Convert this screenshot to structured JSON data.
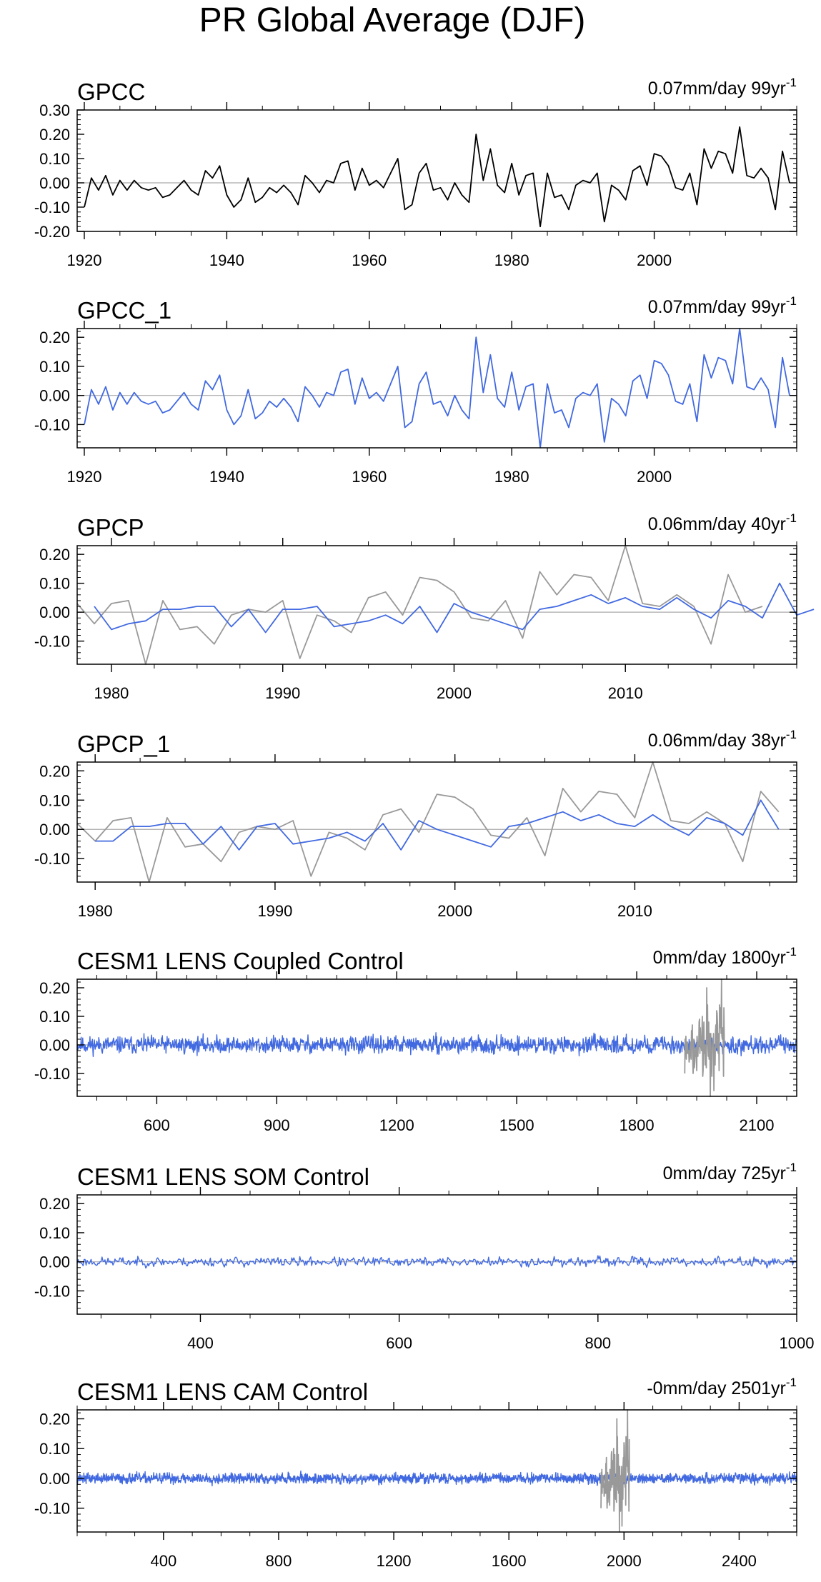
{
  "figure_title": "PR Global Average (DJF)",
  "colors": {
    "blue": "#4169e1",
    "gray": "#999999",
    "black": "#000000",
    "zero_line": "#aaaaaa"
  },
  "chart_data": [
    {
      "type": "line",
      "title": "GPCC",
      "trend_label": "0.07mm/day 99yr",
      "trend_exp": "-1",
      "xlim": [
        1919,
        2020
      ],
      "ylim": [
        -0.2,
        0.3
      ],
      "xticks": [
        1920,
        1940,
        1960,
        1980,
        2000
      ],
      "yticks": [
        "-0.20",
        "-0.10",
        "0.00",
        "0.10",
        "0.20",
        "0.30"
      ],
      "ytick_values": [
        -0.2,
        -0.1,
        0.0,
        0.1,
        0.2,
        0.3
      ],
      "series": [
        {
          "name": "GPCC",
          "color": "black",
          "x_start": 1920,
          "x_step": 1,
          "values": [
            -0.1,
            0.02,
            -0.03,
            0.03,
            -0.05,
            0.01,
            -0.03,
            0.01,
            -0.02,
            -0.03,
            -0.02,
            -0.06,
            -0.05,
            -0.02,
            0.01,
            -0.03,
            -0.05,
            0.05,
            0.02,
            0.07,
            -0.05,
            -0.1,
            -0.07,
            0.02,
            -0.08,
            -0.06,
            -0.02,
            -0.04,
            -0.01,
            -0.04,
            -0.09,
            0.03,
            0.0,
            -0.04,
            0.01,
            0.0,
            0.08,
            0.09,
            -0.03,
            0.06,
            -0.01,
            0.01,
            -0.02,
            0.04,
            0.1,
            -0.11,
            -0.09,
            0.04,
            0.08,
            -0.03,
            -0.02,
            -0.07,
            0.0,
            -0.05,
            -0.08,
            0.2,
            0.01,
            0.14,
            -0.01,
            -0.04,
            0.08,
            -0.05,
            0.03,
            0.04,
            -0.18,
            0.04,
            -0.06,
            -0.05,
            -0.11,
            -0.01,
            0.01,
            0.0,
            0.04,
            -0.16,
            -0.01,
            -0.03,
            -0.07,
            0.05,
            0.07,
            -0.01,
            0.12,
            0.11,
            0.07,
            -0.02,
            -0.03,
            0.04,
            -0.09,
            0.14,
            0.06,
            0.13,
            0.12,
            0.04,
            0.23,
            0.03,
            0.02,
            0.06,
            0.02,
            -0.11,
            0.13,
            0.0
          ]
        }
      ]
    },
    {
      "type": "line",
      "title": "GPCC_1",
      "trend_label": "0.07mm/day 99yr",
      "trend_exp": "-1",
      "xlim": [
        1919,
        2020
      ],
      "ylim": [
        -0.18,
        0.23
      ],
      "xticks": [
        1920,
        1940,
        1960,
        1980,
        2000
      ],
      "yticks": [
        "-0.10",
        "0.00",
        "0.10",
        "0.20"
      ],
      "ytick_values": [
        -0.1,
        0.0,
        0.1,
        0.2
      ],
      "series": [
        {
          "name": "GPCC_1",
          "color": "blue",
          "x_start": 1920,
          "x_step": 1,
          "values": [
            -0.1,
            0.02,
            -0.03,
            0.03,
            -0.05,
            0.01,
            -0.03,
            0.01,
            -0.02,
            -0.03,
            -0.02,
            -0.06,
            -0.05,
            -0.02,
            0.01,
            -0.03,
            -0.05,
            0.05,
            0.02,
            0.07,
            -0.05,
            -0.1,
            -0.07,
            0.02,
            -0.08,
            -0.06,
            -0.02,
            -0.04,
            -0.01,
            -0.04,
            -0.09,
            0.03,
            0.0,
            -0.04,
            0.01,
            0.0,
            0.08,
            0.09,
            -0.03,
            0.06,
            -0.01,
            0.01,
            -0.02,
            0.04,
            0.1,
            -0.11,
            -0.09,
            0.04,
            0.08,
            -0.03,
            -0.02,
            -0.07,
            0.0,
            -0.05,
            -0.08,
            0.2,
            0.01,
            0.14,
            -0.01,
            -0.04,
            0.08,
            -0.05,
            0.03,
            0.04,
            -0.18,
            0.04,
            -0.06,
            -0.05,
            -0.11,
            -0.01,
            0.01,
            0.0,
            0.04,
            -0.16,
            -0.01,
            -0.03,
            -0.07,
            0.05,
            0.07,
            -0.01,
            0.12,
            0.11,
            0.07,
            -0.02,
            -0.03,
            0.04,
            -0.09,
            0.14,
            0.06,
            0.13,
            0.12,
            0.04,
            0.23,
            0.03,
            0.02,
            0.06,
            0.02,
            -0.11,
            0.13,
            0.0
          ]
        }
      ]
    },
    {
      "type": "line",
      "title": "GPCP",
      "trend_label": "0.06mm/day 40yr",
      "trend_exp": "-1",
      "xlim": [
        1978,
        2020
      ],
      "ylim": [
        -0.18,
        0.23
      ],
      "xticks": [
        1980,
        1990,
        2000,
        2010
      ],
      "yticks": [
        "-0.10",
        "0.00",
        "0.10",
        "0.20"
      ],
      "ytick_values": [
        -0.1,
        0.0,
        0.1,
        0.2
      ],
      "series": [
        {
          "name": "GPCC (gray)",
          "color": "gray",
          "x_start": 1978,
          "x_step": 1,
          "values": [
            0.03,
            -0.04,
            0.03,
            0.04,
            -0.18,
            0.04,
            -0.06,
            -0.05,
            -0.11,
            -0.01,
            0.01,
            0.0,
            0.04,
            -0.16,
            -0.01,
            -0.03,
            -0.07,
            0.05,
            0.07,
            -0.01,
            0.12,
            0.11,
            0.07,
            -0.02,
            -0.03,
            0.04,
            -0.09,
            0.14,
            0.06,
            0.13,
            0.12,
            0.04,
            0.23,
            0.03,
            0.02,
            0.06,
            0.02,
            -0.11,
            0.13,
            0.0,
            0.02
          ]
        },
        {
          "name": "GPCP (blue)",
          "color": "blue",
          "x_start": 1979,
          "x_step": 1,
          "values": [
            0.02,
            -0.06,
            -0.04,
            -0.03,
            0.01,
            0.01,
            0.02,
            0.02,
            -0.05,
            0.01,
            -0.07,
            0.01,
            0.01,
            0.02,
            -0.05,
            -0.04,
            -0.03,
            -0.01,
            -0.04,
            0.02,
            -0.07,
            0.03,
            0.0,
            -0.02,
            -0.04,
            -0.06,
            0.01,
            0.02,
            0.04,
            0.06,
            0.03,
            0.05,
            0.02,
            0.01,
            0.05,
            0.01,
            -0.02,
            0.04,
            0.02,
            -0.02,
            0.1,
            -0.01,
            0.01
          ]
        }
      ]
    },
    {
      "type": "line",
      "title": "GPCP_1",
      "trend_label": "0.06mm/day 38yr",
      "trend_exp": "-1",
      "xlim": [
        1979,
        2019
      ],
      "ylim": [
        -0.18,
        0.23
      ],
      "xticks": [
        1980,
        1990,
        2000,
        2010
      ],
      "yticks": [
        "-0.10",
        "0.00",
        "0.10",
        "0.20"
      ],
      "ytick_values": [
        -0.1,
        0.0,
        0.1,
        0.2
      ],
      "series": [
        {
          "name": "GPCC (gray)",
          "color": "gray",
          "x_start": 1979,
          "x_step": 1,
          "values": [
            0.02,
            -0.04,
            0.03,
            0.04,
            -0.18,
            0.04,
            -0.06,
            -0.05,
            -0.11,
            -0.01,
            0.01,
            0.0,
            0.03,
            -0.16,
            -0.01,
            -0.03,
            -0.07,
            0.05,
            0.07,
            -0.01,
            0.12,
            0.11,
            0.07,
            -0.02,
            -0.03,
            0.04,
            -0.09,
            0.14,
            0.06,
            0.13,
            0.12,
            0.04,
            0.23,
            0.03,
            0.02,
            0.06,
            0.02,
            -0.11,
            0.13,
            0.06
          ]
        },
        {
          "name": "GPCP_1 (blue)",
          "color": "blue",
          "x_start": 1980,
          "x_step": 1,
          "values": [
            -0.04,
            -0.04,
            0.01,
            0.01,
            0.02,
            0.02,
            -0.05,
            0.01,
            -0.07,
            0.01,
            0.02,
            -0.05,
            -0.04,
            -0.03,
            -0.01,
            -0.04,
            0.02,
            -0.07,
            0.03,
            0.0,
            -0.02,
            -0.04,
            -0.06,
            0.01,
            0.02,
            0.04,
            0.06,
            0.03,
            0.05,
            0.02,
            0.01,
            0.05,
            0.01,
            -0.02,
            0.04,
            0.02,
            -0.02,
            0.1,
            0.0
          ]
        }
      ]
    },
    {
      "type": "line",
      "title": "CESM1 LENS Coupled Control",
      "trend_label": "0mm/day 1800yr",
      "trend_exp": "-1",
      "xlim": [
        401,
        2200
      ],
      "ylim": [
        -0.18,
        0.23
      ],
      "xticks": [
        600,
        900,
        1200,
        1500,
        1800,
        2100
      ],
      "yticks": [
        "-0.10",
        "0.00",
        "0.10",
        "0.20"
      ],
      "ytick_values": [
        -0.1,
        0.0,
        0.1,
        0.2
      ],
      "series": [
        {
          "name": "control (blue)",
          "color": "blue",
          "noise": {
            "x0": 401,
            "x1": 2200,
            "n": 1800,
            "amp": 0.022,
            "seed": 11
          }
        },
        {
          "name": "GPCC (gray)",
          "color": "gray",
          "x_start": 1920,
          "x_step": 1,
          "values": [
            -0.1,
            0.02,
            -0.03,
            0.03,
            -0.05,
            0.01,
            -0.03,
            0.01,
            -0.02,
            -0.03,
            -0.02,
            -0.06,
            -0.05,
            -0.02,
            0.01,
            -0.03,
            -0.05,
            0.05,
            0.02,
            0.07,
            -0.05,
            -0.1,
            -0.07,
            0.02,
            -0.08,
            -0.06,
            -0.02,
            -0.04,
            -0.01,
            -0.04,
            -0.09,
            0.03,
            0.0,
            -0.04,
            0.01,
            0.0,
            0.08,
            0.09,
            -0.03,
            0.06,
            -0.01,
            0.01,
            -0.02,
            0.04,
            0.1,
            -0.11,
            -0.09,
            0.04,
            0.08,
            -0.03,
            -0.02,
            -0.07,
            0.0,
            -0.05,
            -0.08,
            0.2,
            0.01,
            0.14,
            -0.01,
            -0.04,
            0.08,
            -0.05,
            0.03,
            0.04,
            -0.18,
            0.04,
            -0.06,
            -0.05,
            -0.11,
            -0.01,
            0.01,
            0.0,
            0.04,
            -0.16,
            -0.01,
            -0.03,
            -0.07,
            0.05,
            0.07,
            -0.01,
            0.12,
            0.11,
            0.07,
            -0.02,
            -0.03,
            0.04,
            -0.09,
            0.14,
            0.06,
            0.13,
            0.12,
            0.04,
            0.23,
            0.03,
            0.02,
            0.06,
            0.02,
            -0.11,
            0.13,
            0.0
          ]
        }
      ]
    },
    {
      "type": "line",
      "title": "CESM1 LENS SOM Control",
      "trend_label": "0mm/day 725yr",
      "trend_exp": "-1",
      "xlim": [
        276,
        1000
      ],
      "ylim": [
        -0.18,
        0.23
      ],
      "xticks": [
        400,
        600,
        800,
        1000
      ],
      "yticks": [
        "-0.10",
        "0.00",
        "0.10",
        "0.20"
      ],
      "ytick_values": [
        -0.1,
        0.0,
        0.1,
        0.2
      ],
      "series": [
        {
          "name": "control (blue)",
          "color": "blue",
          "noise": {
            "x0": 276,
            "x1": 1000,
            "n": 725,
            "amp": 0.012,
            "seed": 23
          }
        }
      ]
    },
    {
      "type": "line",
      "title": "CESM1 LENS CAM Control",
      "trend_label": "-0mm/day 2501yr",
      "trend_exp": "-1",
      "xlim": [
        100,
        2600
      ],
      "ylim": [
        -0.18,
        0.23
      ],
      "xticks": [
        400,
        800,
        1200,
        1600,
        2000,
        2400
      ],
      "yticks": [
        "-0.10",
        "0.00",
        "0.10",
        "0.20"
      ],
      "ytick_values": [
        -0.1,
        0.0,
        0.1,
        0.2
      ],
      "series": [
        {
          "name": "control (blue)",
          "color": "blue",
          "noise": {
            "x0": 100,
            "x1": 2600,
            "n": 2501,
            "amp": 0.013,
            "seed": 37
          }
        },
        {
          "name": "GPCC (gray)",
          "color": "gray",
          "x_start": 1920,
          "x_step": 1,
          "values": [
            -0.1,
            0.02,
            -0.03,
            0.03,
            -0.05,
            0.01,
            -0.03,
            0.01,
            -0.02,
            -0.03,
            -0.02,
            -0.06,
            -0.05,
            -0.02,
            0.01,
            -0.03,
            -0.05,
            0.05,
            0.02,
            0.07,
            -0.05,
            -0.1,
            -0.07,
            0.02,
            -0.08,
            -0.06,
            -0.02,
            -0.04,
            -0.01,
            -0.04,
            -0.09,
            0.03,
            0.0,
            -0.04,
            0.01,
            0.0,
            0.08,
            0.09,
            -0.03,
            0.06,
            -0.01,
            0.01,
            -0.02,
            0.04,
            0.1,
            -0.11,
            -0.09,
            0.04,
            0.08,
            -0.03,
            -0.02,
            -0.07,
            0.0,
            -0.05,
            -0.08,
            0.2,
            0.01,
            0.14,
            -0.01,
            -0.04,
            0.08,
            -0.05,
            0.03,
            0.04,
            -0.18,
            0.04,
            -0.06,
            -0.05,
            -0.11,
            -0.01,
            0.01,
            0.0,
            0.04,
            -0.16,
            -0.01,
            -0.03,
            -0.07,
            0.05,
            0.07,
            -0.01,
            0.12,
            0.11,
            0.07,
            -0.02,
            -0.03,
            0.04,
            -0.09,
            0.14,
            0.06,
            0.13,
            0.12,
            0.04,
            0.23,
            0.03,
            0.02,
            0.06,
            0.02,
            -0.11,
            0.13,
            0.0
          ]
        }
      ]
    }
  ]
}
